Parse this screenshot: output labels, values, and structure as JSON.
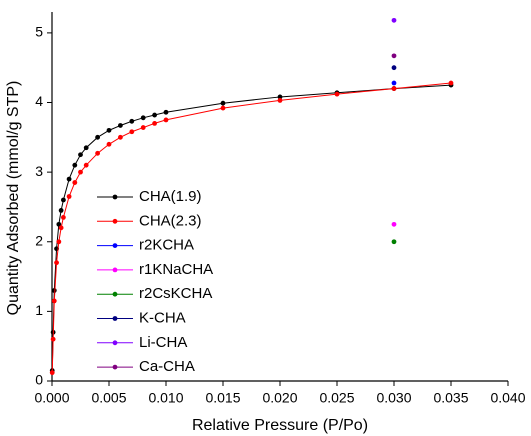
{
  "chart_data": {
    "type": "line",
    "xlabel": "Relative Pressure (P/Po)",
    "ylabel": "Quantity Adsorbed (mmol/g STP)",
    "xlim": [
      0,
      0.04
    ],
    "ylim": [
      0,
      5.3
    ],
    "xticks": [
      {
        "value": 0,
        "label": "0.000"
      },
      {
        "value": 0.005,
        "label": "0.005"
      },
      {
        "value": 0.01,
        "label": "0.010"
      },
      {
        "value": 0.015,
        "label": "0.015"
      },
      {
        "value": 0.02,
        "label": "0.020"
      },
      {
        "value": 0.025,
        "label": "0.025"
      },
      {
        "value": 0.03,
        "label": "0.030"
      },
      {
        "value": 0.035,
        "label": "0.035"
      },
      {
        "value": 0.04,
        "label": "0.040"
      }
    ],
    "yticks": [
      0,
      1,
      2,
      3,
      4,
      5
    ],
    "series": [
      {
        "name": "CHA(1.9)",
        "color": "#000000",
        "x": [
          2e-05,
          0.0001,
          0.0002,
          0.0004,
          0.0006,
          0.0008,
          0.001,
          0.0015,
          0.002,
          0.0025,
          0.003,
          0.004,
          0.005,
          0.006,
          0.007,
          0.008,
          0.009,
          0.01,
          0.015,
          0.02,
          0.025,
          0.03,
          0.035
        ],
        "values": [
          0.15,
          0.7,
          1.3,
          1.9,
          2.25,
          2.45,
          2.6,
          2.9,
          3.1,
          3.25,
          3.35,
          3.5,
          3.6,
          3.67,
          3.73,
          3.78,
          3.82,
          3.86,
          3.99,
          4.08,
          4.14,
          4.2,
          4.25
        ]
      },
      {
        "name": "CHA(2.3)",
        "color": "#ff0000",
        "x": [
          2e-05,
          0.0001,
          0.0002,
          0.0004,
          0.0006,
          0.0008,
          0.001,
          0.0015,
          0.002,
          0.0025,
          0.003,
          0.004,
          0.005,
          0.006,
          0.007,
          0.008,
          0.009,
          0.01,
          0.015,
          0.02,
          0.025,
          0.03,
          0.035
        ],
        "values": [
          0.12,
          0.6,
          1.15,
          1.7,
          2.0,
          2.2,
          2.35,
          2.65,
          2.85,
          3.0,
          3.1,
          3.27,
          3.4,
          3.5,
          3.58,
          3.64,
          3.7,
          3.75,
          3.92,
          4.03,
          4.12,
          4.2,
          4.28
        ]
      },
      {
        "name": "r2KCHA",
        "color": "#0000ff",
        "x": [
          0.03
        ],
        "values": [
          4.28
        ]
      },
      {
        "name": "r1KNaCHA",
        "color": "#ff00ff",
        "x": [
          0.03
        ],
        "values": [
          2.25
        ]
      },
      {
        "name": "r2CsKCHA",
        "color": "#008000",
        "x": [
          0.03
        ],
        "values": [
          2.0
        ]
      },
      {
        "name": "K-CHA",
        "color": "#000080",
        "x": [
          0.03
        ],
        "values": [
          4.5
        ]
      },
      {
        "name": "Li-CHA",
        "color": "#8000ff",
        "x": [
          0.03
        ],
        "values": [
          5.18
        ]
      },
      {
        "name": "Ca-CHA",
        "color": "#800080",
        "x": [
          0.03
        ],
        "values": [
          4.67
        ]
      }
    ]
  }
}
